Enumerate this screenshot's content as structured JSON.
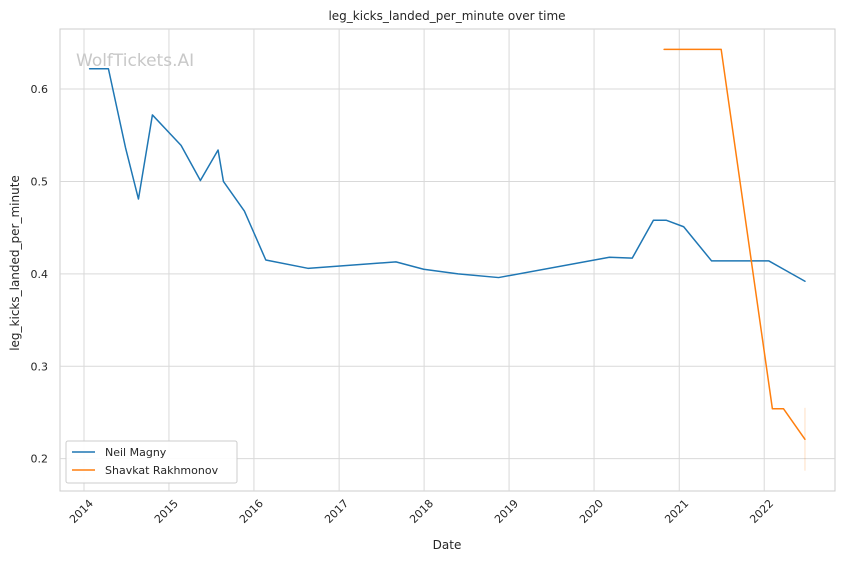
{
  "chart_data": {
    "type": "line",
    "title": "leg_kicks_landed_per_minute over time",
    "xlabel": "Date",
    "ylabel": "leg_kicks_landed_per_minute",
    "watermark": "WolfTickets.AI",
    "x_ticks": [
      "2014",
      "2015",
      "2016",
      "2017",
      "2018",
      "2019",
      "2020",
      "2021",
      "2022"
    ],
    "y_ticks": [
      "0.2",
      "0.3",
      "0.4",
      "0.5",
      "0.6"
    ],
    "xlim": [
      "2013-09-20",
      "2022-11-01"
    ],
    "ylim": [
      0.165,
      0.665
    ],
    "grid": true,
    "legend_position": "lower-left",
    "series": [
      {
        "name": "Neil Magny",
        "color": "#1f77b4",
        "points": [
          [
            "2014-01-25",
            0.622
          ],
          [
            "2014-04-16",
            0.622
          ],
          [
            "2014-06-28",
            0.537
          ],
          [
            "2014-08-23",
            0.481
          ],
          [
            "2014-10-22",
            0.572
          ],
          [
            "2015-02-22",
            0.539
          ],
          [
            "2015-05-16",
            0.501
          ],
          [
            "2015-07-31",
            0.534
          ],
          [
            "2015-08-23",
            0.5
          ],
          [
            "2015-11-21",
            0.468
          ],
          [
            "2016-02-21",
            0.415
          ],
          [
            "2016-08-20",
            0.406
          ],
          [
            "2017-09-02",
            0.413
          ],
          [
            "2017-12-30",
            0.405
          ],
          [
            "2018-05-27",
            0.4
          ],
          [
            "2018-11-17",
            0.396
          ],
          [
            "2020-03-07",
            0.418
          ],
          [
            "2020-06-13",
            0.417
          ],
          [
            "2020-09-12",
            0.458
          ],
          [
            "2020-11-07",
            0.458
          ],
          [
            "2021-01-20",
            0.451
          ],
          [
            "2021-05-20",
            0.414
          ],
          [
            "2022-01-21",
            0.414
          ],
          [
            "2022-04-01",
            0.404
          ],
          [
            "2022-06-25",
            0.392
          ]
        ]
      },
      {
        "name": "Shavkat Rakhmonov",
        "color": "#ff7f0e",
        "points": [
          [
            "2020-10-28",
            0.643
          ],
          [
            "2021-06-30",
            0.643
          ],
          [
            "2022-02-05",
            0.254
          ],
          [
            "2022-03-25",
            0.254
          ],
          [
            "2022-06-25",
            0.221
          ]
        ]
      }
    ],
    "error_band": {
      "x": "2022-06-25",
      "low": 0.187,
      "high": 0.255,
      "color": "#ff7f0e"
    }
  }
}
